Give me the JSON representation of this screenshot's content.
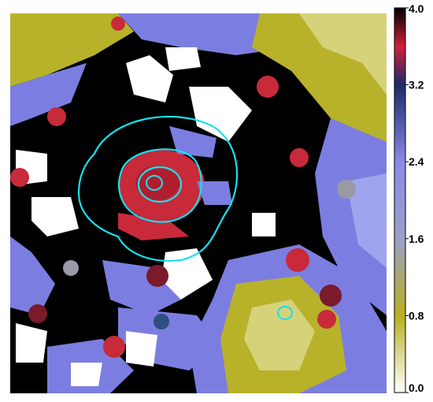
{
  "image": {
    "kind": "astronomical false-color hardness/ratio map with contour overlay",
    "palette": {
      "background": "#ffffff",
      "black": "#000000",
      "red": "#c82a3a",
      "dark_red": "#7a1a2a",
      "blue": "#7b7ee0",
      "light_blue": "#a0a4ee",
      "dark_blue": "#2f4f7f",
      "olive": "#b8b22a",
      "light_olive": "#d6d27a",
      "grey": "#9a9aa6",
      "contour": "#18e0f0"
    }
  },
  "colorbar": {
    "ticks": [
      "4.0",
      "3.2",
      "2.4",
      "1.6",
      "0.8",
      "0.0"
    ],
    "range": [
      0.0,
      4.0
    ],
    "stops": [
      {
        "value": 0.0,
        "color": "#ffffff"
      },
      {
        "value": 0.8,
        "color": "#b8b020"
      },
      {
        "value": 1.6,
        "color": "#9aa0c8"
      },
      {
        "value": 2.4,
        "color": "#8a8ae8"
      },
      {
        "value": 3.2,
        "color": "#1e2a6a"
      },
      {
        "value": 3.6,
        "color": "#d0203a"
      },
      {
        "value": 4.0,
        "color": "#000000"
      }
    ]
  },
  "contours": {
    "count": 5,
    "color": "#18e0f0"
  }
}
